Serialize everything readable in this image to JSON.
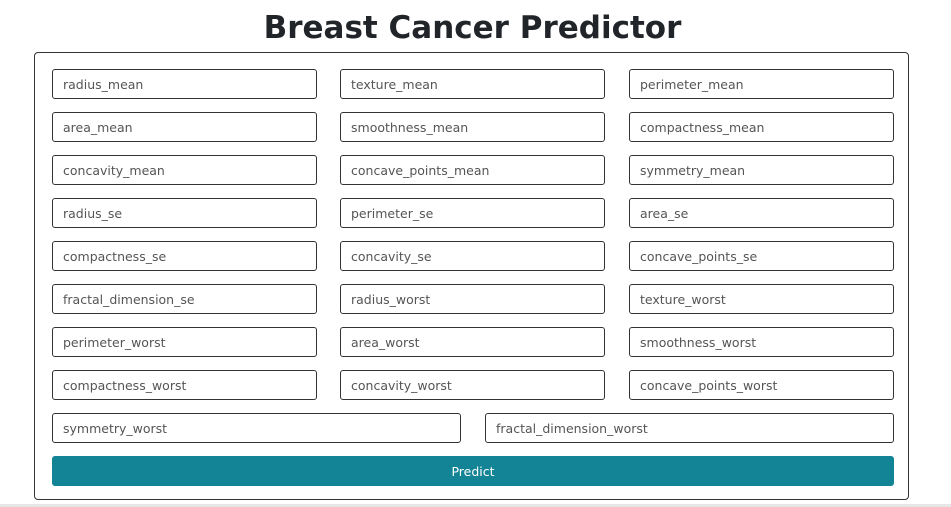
{
  "page": {
    "title": "Breast Cancer Predictor"
  },
  "form": {
    "fields": [
      {
        "placeholder": "radius_mean",
        "value": ""
      },
      {
        "placeholder": "texture_mean",
        "value": ""
      },
      {
        "placeholder": "perimeter_mean",
        "value": ""
      },
      {
        "placeholder": "area_mean",
        "value": ""
      },
      {
        "placeholder": "smoothness_mean",
        "value": ""
      },
      {
        "placeholder": "compactness_mean",
        "value": ""
      },
      {
        "placeholder": "concavity_mean",
        "value": ""
      },
      {
        "placeholder": "concave_points_mean",
        "value": ""
      },
      {
        "placeholder": "symmetry_mean",
        "value": ""
      },
      {
        "placeholder": "radius_se",
        "value": ""
      },
      {
        "placeholder": "perimeter_se",
        "value": ""
      },
      {
        "placeholder": "area_se",
        "value": ""
      },
      {
        "placeholder": "compactness_se",
        "value": ""
      },
      {
        "placeholder": "concavity_se",
        "value": ""
      },
      {
        "placeholder": "concave_points_se",
        "value": ""
      },
      {
        "placeholder": "fractal_dimension_se",
        "value": ""
      },
      {
        "placeholder": "radius_worst",
        "value": ""
      },
      {
        "placeholder": "texture_worst",
        "value": ""
      },
      {
        "placeholder": "perimeter_worst",
        "value": ""
      },
      {
        "placeholder": "area_worst",
        "value": ""
      },
      {
        "placeholder": "smoothness_worst",
        "value": ""
      },
      {
        "placeholder": "compactness_worst",
        "value": ""
      },
      {
        "placeholder": "concavity_worst",
        "value": ""
      },
      {
        "placeholder": "concave_points_worst",
        "value": ""
      },
      {
        "placeholder": "symmetry_worst",
        "value": ""
      },
      {
        "placeholder": "fractal_dimension_worst",
        "value": ""
      }
    ],
    "submit_label": "Predict"
  },
  "colors": {
    "button_background": "#138496",
    "button_text": "#ffffff",
    "border": "#333333",
    "title_text": "#212529"
  }
}
